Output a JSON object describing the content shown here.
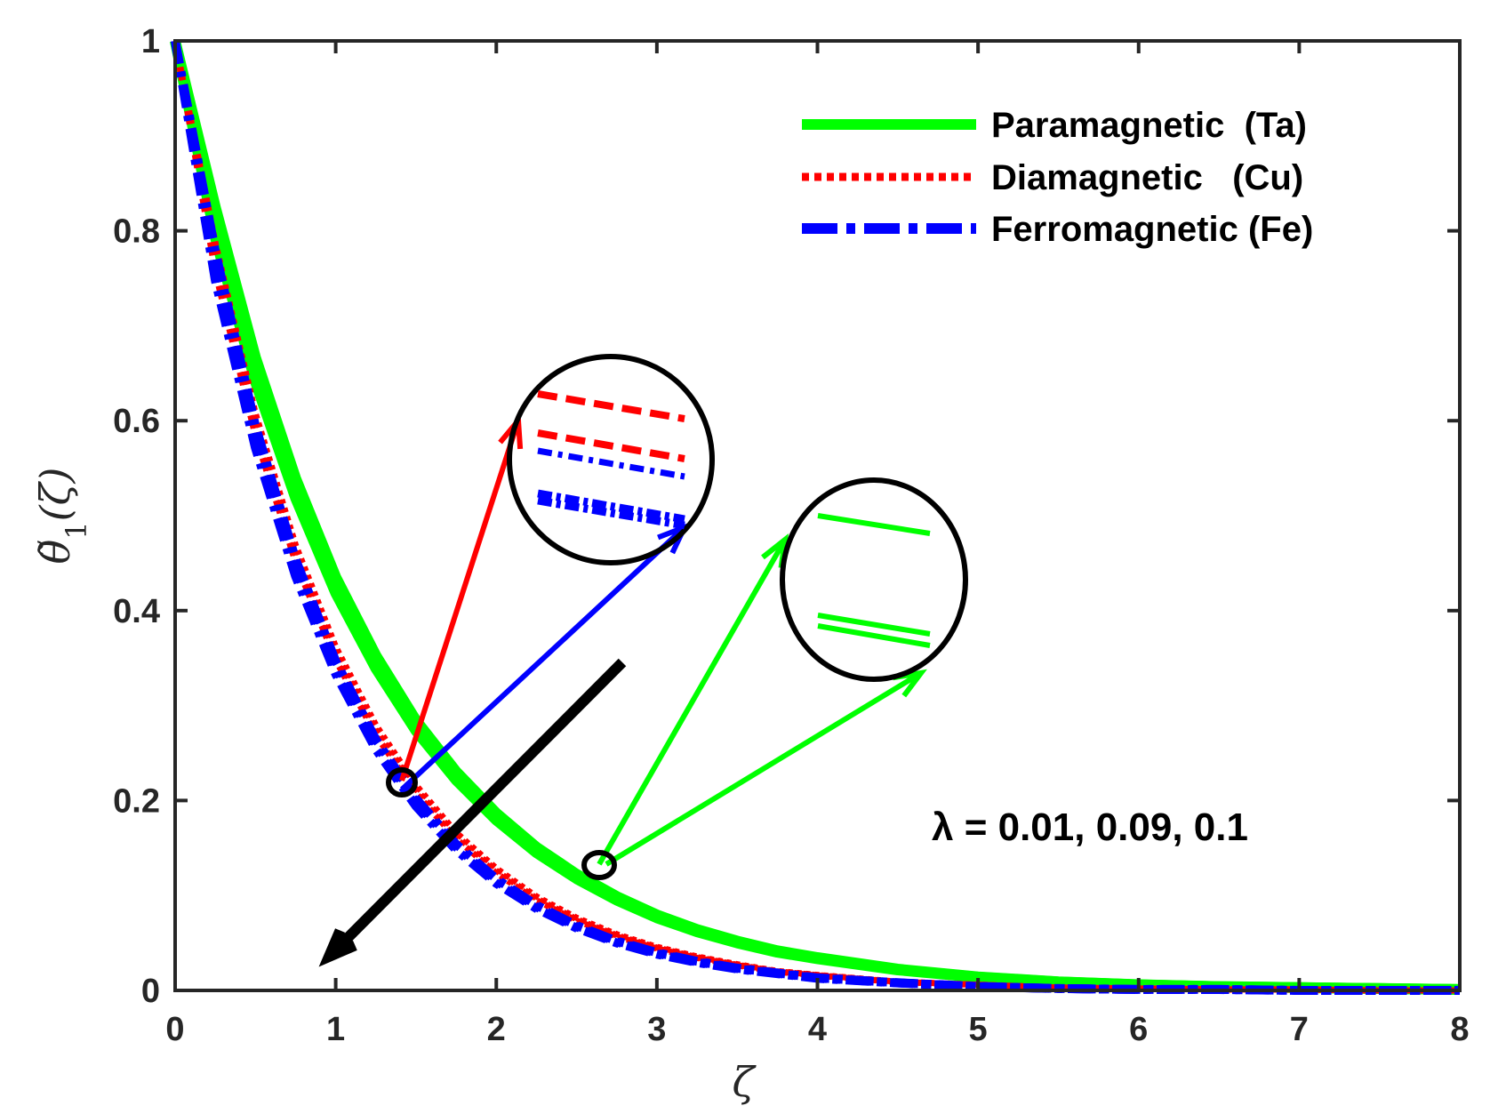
{
  "chart_data": {
    "type": "line",
    "title": "",
    "xlabel": "ζ",
    "ylabel": "θ̃₁(ζ)",
    "ylabel_parts": {
      "base": "θ̃",
      "sub": "1",
      "arg": "(ζ)"
    },
    "xlim": [
      0,
      8
    ],
    "ylim": [
      0,
      1
    ],
    "xticks": [
      "0",
      "1",
      "2",
      "3",
      "4",
      "5",
      "6",
      "7",
      "8"
    ],
    "yticks": [
      "0",
      "0.2",
      "0.4",
      "0.6",
      "0.8",
      "1"
    ],
    "grid": false,
    "legend_placement": "top-right",
    "x": [
      0,
      0.25,
      0.5,
      0.75,
      1.0,
      1.25,
      1.5,
      1.75,
      2.0,
      2.25,
      2.5,
      2.75,
      3.0,
      3.25,
      3.5,
      3.75,
      4.0,
      4.5,
      5.0,
      5.5,
      6.0,
      6.5,
      7.0,
      7.5,
      8.0
    ],
    "series": [
      {
        "name": "Paramagnetic  (Ta)",
        "color": "#00ff00",
        "style": "solid",
        "values": [
          1.0,
          0.809,
          0.654,
          0.529,
          0.427,
          0.346,
          0.279,
          0.226,
          0.183,
          0.148,
          0.12,
          0.097,
          0.078,
          0.063,
          0.051,
          0.041,
          0.034,
          0.022,
          0.014,
          0.009,
          0.006,
          0.004,
          0.003,
          0.002,
          0.001
        ]
      },
      {
        "name": "Diamagnetic   (Cu)",
        "color": "#ff0000",
        "style": "dotted",
        "values": [
          1.0,
          0.772,
          0.596,
          0.46,
          0.355,
          0.274,
          0.212,
          0.163,
          0.126,
          0.097,
          0.075,
          0.058,
          0.045,
          0.035,
          0.027,
          0.02,
          0.016,
          0.009,
          0.006,
          0.003,
          0.002,
          0.001,
          0.001,
          0.0,
          0.0
        ]
      },
      {
        "name": "Ferromagnetic (Fe)",
        "color": "#0000ff",
        "style": "dashdot",
        "values": [
          1.0,
          0.763,
          0.583,
          0.445,
          0.34,
          0.259,
          0.198,
          0.151,
          0.115,
          0.088,
          0.067,
          0.051,
          0.039,
          0.03,
          0.023,
          0.018,
          0.013,
          0.008,
          0.004,
          0.002,
          0.001,
          0.001,
          0.0,
          0.0,
          0.0
        ]
      }
    ],
    "annotations": [
      "λ = 0.01, 0.09, 0.1"
    ]
  }
}
